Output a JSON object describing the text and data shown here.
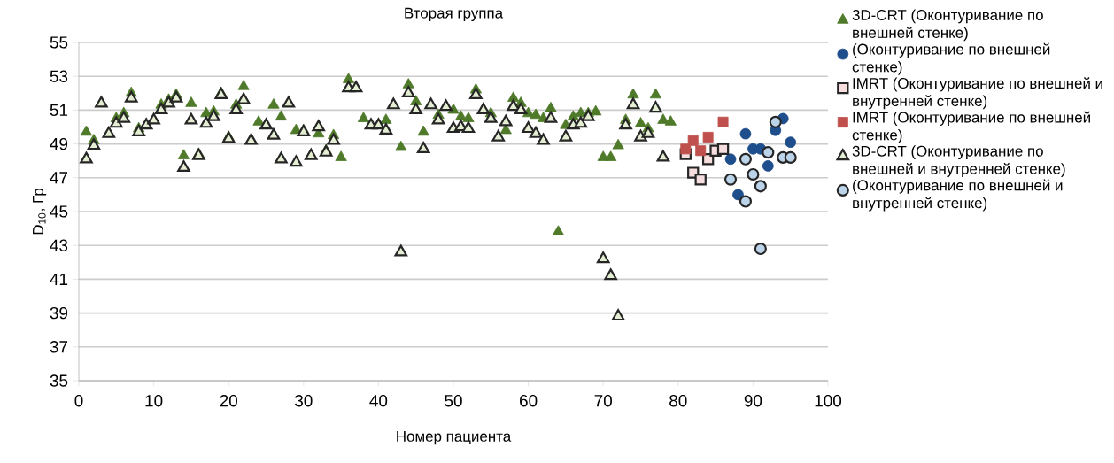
{
  "chart_data": {
    "type": "scatter",
    "title": "Вторая группа",
    "xlabel": "Номер пациента",
    "ylabel": "D$_{10}$, Гр",
    "xlim": [
      0,
      100
    ],
    "xticks": [
      0,
      10,
      20,
      30,
      40,
      50,
      60,
      70,
      80,
      90,
      100
    ],
    "ylim": [
      35,
      55
    ],
    "yticks": [
      35,
      37,
      39,
      41,
      43,
      45,
      47,
      49,
      51,
      53,
      55
    ],
    "grid": "y",
    "legend": "right",
    "series": [
      {
        "name": "3D-CRT (Оконтуривание по внешней стенке)",
        "color": "#4e7a2a",
        "marker": "triangle",
        "x": [
          1,
          2,
          4,
          5,
          6,
          7,
          8,
          11,
          12,
          13,
          14,
          15,
          16,
          17,
          18,
          19,
          20,
          21,
          22,
          24,
          26,
          27,
          29,
          30,
          32,
          33,
          34,
          35,
          36,
          38,
          41,
          43,
          44,
          45,
          46,
          48,
          50,
          51,
          52,
          53,
          55,
          57,
          58,
          59,
          60,
          61,
          62,
          63,
          64,
          65,
          66,
          67,
          68,
          69,
          70,
          71,
          72,
          73,
          74,
          75,
          76,
          77,
          78,
          79
        ],
        "values": [
          49.7,
          49.2,
          49.6,
          50.5,
          50.8,
          52.0,
          49.9,
          51.3,
          51.6,
          51.9,
          48.3,
          51.4,
          48.4,
          50.8,
          50.9,
          52.0,
          49.4,
          51.3,
          52.4,
          50.3,
          51.3,
          50.6,
          49.8,
          49.8,
          49.6,
          48.6,
          49.5,
          48.2,
          52.8,
          50.5,
          50.4,
          48.8,
          52.5,
          51.5,
          49.7,
          50.7,
          51.0,
          50.6,
          50.5,
          52.2,
          50.8,
          49.8,
          51.7,
          51.4,
          50.8,
          50.7,
          50.5,
          51.1,
          43.8,
          50.1,
          50.6,
          50.8,
          50.8,
          50.9,
          48.2,
          48.2,
          48.9,
          50.4,
          51.9,
          50.2,
          49.9,
          51.9,
          50.4,
          50.3
        ]
      },
      {
        "name": "(Оконтуривание по внешней стенке)",
        "color": "#1f4e8c",
        "marker": "circle",
        "x": [
          87,
          88,
          89,
          90,
          91,
          92,
          93,
          94,
          95
        ],
        "values": [
          48.1,
          46.0,
          49.6,
          48.7,
          48.7,
          47.7,
          49.8,
          50.5,
          49.1
        ]
      },
      {
        "name": "IMRT (Оконтуривание по внешней и внутренней стенке)",
        "color": "#f6dede",
        "marker": "square",
        "x": [
          81,
          82,
          83,
          84,
          85,
          86
        ],
        "values": [
          48.4,
          47.3,
          46.9,
          48.1,
          48.6,
          48.7
        ]
      },
      {
        "name": "IMRT (Оконтуривание по внешней стенке)",
        "color": "#c0504d",
        "marker": "square",
        "x": [
          81,
          82,
          83,
          84,
          86
        ],
        "values": [
          48.7,
          49.2,
          48.6,
          49.4,
          50.3
        ]
      },
      {
        "name": "3D-CRT (Оконтуривание по внешней и внутренней стенке)",
        "color": "#e4eed2",
        "marker": "triangle",
        "x": [
          1,
          2,
          3,
          4,
          5,
          6,
          7,
          8,
          9,
          10,
          11,
          12,
          13,
          14,
          15,
          16,
          17,
          18,
          19,
          20,
          21,
          22,
          23,
          25,
          26,
          27,
          28,
          29,
          30,
          31,
          32,
          33,
          34,
          36,
          37,
          39,
          40,
          41,
          42,
          43,
          44,
          45,
          46,
          47,
          48,
          49,
          50,
          51,
          52,
          53,
          54,
          55,
          56,
          57,
          58,
          59,
          60,
          61,
          62,
          63,
          65,
          66,
          67,
          68,
          70,
          71,
          72,
          73,
          74,
          75,
          76,
          77,
          78
        ],
        "values": [
          48.1,
          48.9,
          51.4,
          49.6,
          50.2,
          50.5,
          51.7,
          49.7,
          50.1,
          50.4,
          51.0,
          51.4,
          51.7,
          47.6,
          50.4,
          48.3,
          50.2,
          50.6,
          51.9,
          49.3,
          51.0,
          51.6,
          49.2,
          50.1,
          49.5,
          48.1,
          51.4,
          47.9,
          49.7,
          48.3,
          50.0,
          48.5,
          49.2,
          52.3,
          52.3,
          50.1,
          50.1,
          49.8,
          51.3,
          42.6,
          52.0,
          51.0,
          48.7,
          51.3,
          50.4,
          51.2,
          49.9,
          50.0,
          49.9,
          51.9,
          51.0,
          50.5,
          49.4,
          50.3,
          51.2,
          51.0,
          49.9,
          49.6,
          49.2,
          50.5,
          49.4,
          50.1,
          50.2,
          50.6,
          42.2,
          41.2,
          38.8,
          50.1,
          51.3,
          49.4,
          49.6,
          51.1,
          48.2
        ]
      },
      {
        "name": "(Оконтуривание по внешней и внутренней стенке)",
        "color": "#bcd4ea",
        "marker": "circle",
        "x": [
          87,
          89,
          89,
          90,
          91,
          91,
          92,
          93,
          94,
          95
        ],
        "values": [
          46.9,
          45.6,
          48.1,
          47.2,
          42.8,
          46.5,
          48.5,
          50.3,
          48.2,
          48.2
        ]
      }
    ]
  }
}
